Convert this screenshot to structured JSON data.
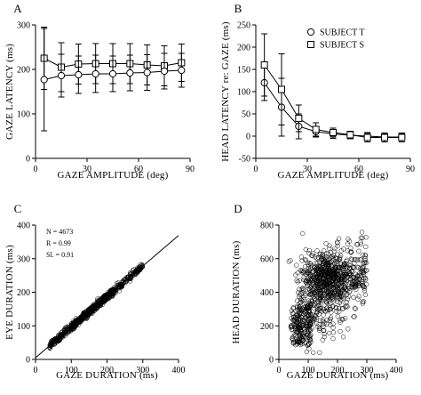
{
  "chart_data": [
    {
      "panel": "A",
      "type": "line",
      "xlabel": "GAZE AMPLITUDE (deg)",
      "ylabel": "GAZE LATENCY (ms)",
      "xlim": [
        0,
        90
      ],
      "ylim": [
        0,
        300
      ],
      "xticks": [
        0,
        30,
        60,
        90
      ],
      "yticks": [
        0,
        100,
        200,
        300
      ],
      "grid": false,
      "series": [
        {
          "marker": "square",
          "x": [
            5,
            15,
            25,
            35,
            45,
            55,
            65,
            75,
            85
          ],
          "y": [
            225,
            205,
            212,
            213,
            213,
            213,
            210,
            208,
            215
          ],
          "err": [
            70,
            55,
            45,
            45,
            45,
            45,
            45,
            45,
            42
          ]
        },
        {
          "marker": "circle",
          "x": [
            5,
            15,
            25,
            35,
            45,
            55,
            65,
            75,
            85
          ],
          "y": [
            177,
            186,
            188,
            190,
            190,
            192,
            193,
            196,
            198
          ],
          "err": [
            115,
            48,
            42,
            42,
            40,
            40,
            40,
            40,
            38
          ]
        }
      ]
    },
    {
      "panel": "B",
      "type": "line",
      "xlabel": "GAZE AMPLITUDE (deg)",
      "ylabel": "HEAD LATENCY re: GAZE (ms)",
      "xlim": [
        0,
        90
      ],
      "ylim": [
        -50,
        250
      ],
      "xticks": [
        0,
        30,
        60,
        90
      ],
      "yticks": [
        -50,
        0,
        50,
        100,
        150,
        200,
        250
      ],
      "grid": false,
      "legend_position": "top-right",
      "series": [
        {
          "name": "SUBJECT T",
          "marker": "circle",
          "x": [
            5,
            15,
            25,
            35,
            45,
            55,
            65,
            75,
            85
          ],
          "y": [
            120,
            65,
            22,
            10,
            5,
            2,
            0,
            -2,
            -2
          ],
          "err": [
            40,
            65,
            28,
            12,
            10,
            8,
            8,
            8,
            8
          ]
        },
        {
          "name": "SUBJECT S",
          "marker": "square",
          "x": [
            5,
            15,
            25,
            35,
            45,
            55,
            65,
            75,
            85
          ],
          "y": [
            160,
            105,
            40,
            15,
            8,
            3,
            -3,
            -3,
            -3
          ],
          "err": [
            70,
            80,
            30,
            15,
            10,
            8,
            10,
            10,
            10
          ]
        }
      ]
    },
    {
      "panel": "C",
      "type": "scatter",
      "xlabel": "GAZE DURATION (ms)",
      "ylabel": "EYE DURATION (ms)",
      "xlim": [
        0,
        400
      ],
      "ylim": [
        0,
        400
      ],
      "xticks": [
        0,
        100,
        200,
        300,
        400
      ],
      "yticks": [
        0,
        100,
        200,
        300,
        400
      ],
      "grid": false,
      "annotations": [
        "N = 4673",
        "R = 0.99",
        "Sl. = 0.91"
      ],
      "fit_line": {
        "slope": 0.91,
        "intercept": 5,
        "x": [
          0,
          400
        ]
      },
      "points": {
        "approx_count": 4673,
        "x_range": [
          30,
          310
        ],
        "y_range": [
          30,
          300
        ]
      }
    },
    {
      "panel": "D",
      "type": "scatter",
      "xlabel": "GAZE DURATION (ms)",
      "ylabel": "HEAD DURATION (ms)",
      "xlim": [
        0,
        400
      ],
      "ylim": [
        0,
        800
      ],
      "xticks": [
        0,
        100,
        200,
        300,
        400
      ],
      "yticks": [
        0,
        200,
        400,
        600,
        800
      ],
      "grid": false,
      "points": {
        "x_range": [
          30,
          300
        ],
        "y_range": [
          40,
          780
        ]
      }
    }
  ]
}
